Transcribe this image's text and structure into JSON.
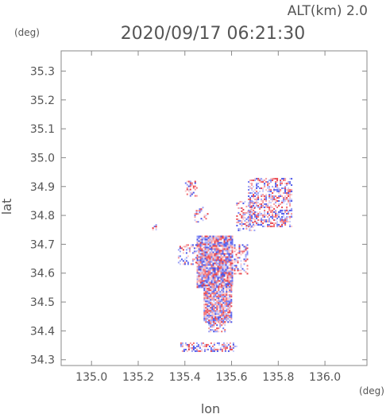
{
  "header": {
    "altitude_label": "ALT(km) 2.0",
    "timestamp": "2020/09/17 06:21:30"
  },
  "chart_data": {
    "type": "scatter",
    "title": "2020/09/17 06:21:30",
    "subtitle": "ALT(km) 2.0",
    "xlabel": "lon",
    "ylabel": "lat",
    "xunit": "(deg)",
    "yunit": "(deg)",
    "xlim": [
      134.87,
      136.18
    ],
    "ylim": [
      34.28,
      35.37
    ],
    "xticks": [
      135.0,
      135.2,
      135.4,
      135.6,
      135.8,
      136.0
    ],
    "xtick_labels": [
      "135.0",
      "135.2",
      "135.4",
      "135.6",
      "135.8",
      "136.0"
    ],
    "yticks": [
      34.3,
      34.4,
      34.5,
      34.6,
      34.7,
      34.8,
      34.9,
      35.0,
      35.1,
      35.2,
      35.3
    ],
    "ytick_labels": [
      "34.3",
      "34.4",
      "34.5",
      "34.6",
      "34.7",
      "34.8",
      "34.9",
      "35.0",
      "35.1",
      "35.2",
      "35.3"
    ],
    "grid": false,
    "colors": {
      "positive": "#e8434a",
      "negative": "#4a55e8",
      "axis": "#888888"
    },
    "clusters": [
      {
        "lon": [
          135.45,
          135.6
        ],
        "lat": [
          34.55,
          34.73
        ],
        "density": 0.9
      },
      {
        "lon": [
          135.48,
          135.6
        ],
        "lat": [
          34.43,
          34.56
        ],
        "density": 0.85
      },
      {
        "lon": [
          135.5,
          135.57
        ],
        "lat": [
          34.4,
          34.45
        ],
        "density": 0.6
      },
      {
        "lon": [
          135.38,
          135.62
        ],
        "lat": [
          34.33,
          34.36
        ],
        "density": 0.5
      },
      {
        "lon": [
          135.67,
          135.86
        ],
        "lat": [
          34.76,
          34.93
        ],
        "density": 0.55
      },
      {
        "lon": [
          135.62,
          135.7
        ],
        "lat": [
          34.75,
          34.85
        ],
        "density": 0.35
      },
      {
        "lon": [
          135.4,
          135.45
        ],
        "lat": [
          34.87,
          34.92
        ],
        "density": 0.4
      },
      {
        "lon": [
          135.44,
          135.5
        ],
        "lat": [
          34.78,
          34.83
        ],
        "density": 0.3
      },
      {
        "lon": [
          135.37,
          135.45
        ],
        "lat": [
          34.63,
          34.7
        ],
        "density": 0.3
      },
      {
        "lon": [
          135.61,
          135.67
        ],
        "lat": [
          34.6,
          34.7
        ],
        "density": 0.35
      },
      {
        "lon": [
          135.26,
          135.28
        ],
        "lat": [
          34.75,
          34.77
        ],
        "density": 0.6
      }
    ]
  }
}
